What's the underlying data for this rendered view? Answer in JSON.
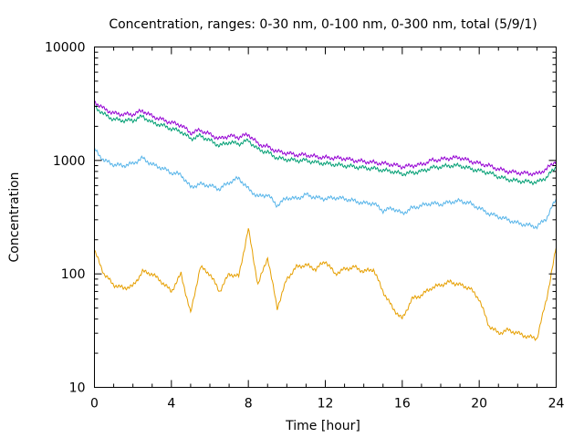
{
  "chart_data": {
    "type": "line",
    "title": "Concentration, ranges: 0-30 nm, 0-100 nm, 0-300 nm, total (5/9/1)",
    "xlabel": "Time [hour]",
    "ylabel": "Concentration",
    "xlim": [
      0,
      24
    ],
    "ylim": [
      10,
      10000
    ],
    "yscale": "log",
    "grid": false,
    "x_ticks": [
      0,
      4,
      8,
      12,
      16,
      20,
      24
    ],
    "x_tick_labels": [
      "0",
      "4",
      "8",
      "12",
      "16",
      "20",
      "24"
    ],
    "y_ticks": [
      10,
      100,
      1000,
      10000
    ],
    "y_tick_labels": [
      "10",
      "100",
      "1000",
      "10000"
    ],
    "x": [
      0,
      0.5,
      1,
      1.5,
      2,
      2.5,
      3,
      3.5,
      4,
      4.5,
      5,
      5.5,
      6,
      6.5,
      7,
      7.5,
      8,
      8.5,
      9,
      9.5,
      10,
      10.5,
      11,
      11.5,
      12,
      12.5,
      13,
      13.5,
      14,
      14.5,
      15,
      15.5,
      16,
      16.5,
      17,
      17.5,
      18,
      18.5,
      19,
      19.5,
      20,
      20.5,
      21,
      21.5,
      22,
      22.5,
      23,
      23.5,
      24
    ],
    "series": [
      {
        "color": "#E69F00",
        "values": [
          160,
          100,
          80,
          75,
          78,
          105,
          100,
          85,
          70,
          100,
          45,
          115,
          100,
          70,
          100,
          95,
          250,
          80,
          140,
          50,
          90,
          115,
          120,
          110,
          130,
          100,
          110,
          115,
          105,
          110,
          70,
          50,
          40,
          60,
          65,
          75,
          80,
          85,
          80,
          75,
          60,
          35,
          30,
          32,
          30,
          28,
          27,
          60,
          170
        ]
      },
      {
        "color": "#56B4E9",
        "values": [
          1250,
          1000,
          920,
          900,
          940,
          1050,
          920,
          860,
          780,
          750,
          580,
          620,
          600,
          560,
          640,
          700,
          560,
          480,
          500,
          400,
          470,
          460,
          500,
          470,
          460,
          470,
          460,
          440,
          420,
          420,
          360,
          380,
          340,
          380,
          400,
          420,
          410,
          430,
          440,
          420,
          380,
          340,
          320,
          300,
          280,
          270,
          260,
          310,
          460
        ]
      },
      {
        "color": "#009E73",
        "values": [
          3000,
          2550,
          2300,
          2250,
          2250,
          2450,
          2150,
          2050,
          1900,
          1800,
          1550,
          1650,
          1500,
          1350,
          1450,
          1400,
          1500,
          1250,
          1180,
          1050,
          1020,
          1000,
          1000,
          960,
          940,
          920,
          900,
          880,
          860,
          850,
          820,
          800,
          760,
          780,
          800,
          860,
          880,
          900,
          900,
          850,
          810,
          780,
          720,
          680,
          660,
          650,
          640,
          710,
          880
        ]
      },
      {
        "color": "#9400D3",
        "values": [
          3300,
          2850,
          2600,
          2550,
          2550,
          2750,
          2450,
          2300,
          2150,
          2050,
          1750,
          1850,
          1700,
          1550,
          1650,
          1600,
          1700,
          1400,
          1320,
          1200,
          1160,
          1120,
          1120,
          1080,
          1060,
          1050,
          1040,
          1000,
          980,
          960,
          940,
          920,
          880,
          900,
          920,
          1000,
          1020,
          1050,
          1060,
          990,
          940,
          900,
          840,
          800,
          780,
          770,
          760,
          840,
          1000
        ]
      }
    ]
  }
}
